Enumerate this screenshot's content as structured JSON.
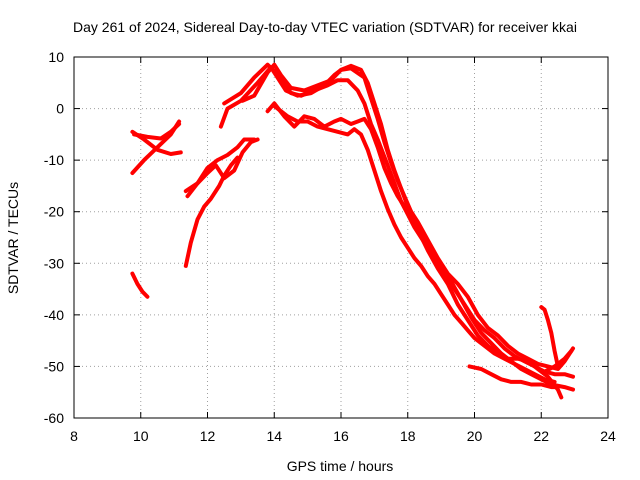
{
  "chart_data": {
    "type": "scatter",
    "title": "Day 261 of 2024, Sidereal Day-to-day VTEC variation (SDTVAR) for receiver kkai",
    "xlabel": "GPS time / hours",
    "ylabel": "SDTVAR / TECUs",
    "xlim": [
      8,
      24
    ],
    "ylim": [
      -60,
      10
    ],
    "x_ticks": [
      "8",
      "10",
      "12",
      "14",
      "16",
      "18",
      "20",
      "22",
      "24"
    ],
    "y_ticks": [
      "10",
      "0",
      "-10",
      "-20",
      "-30",
      "-40",
      "-50",
      "-60"
    ],
    "grid": true,
    "marker": "+",
    "color": "#ff0000",
    "series": [
      {
        "name": "trace-1",
        "points": [
          [
            9.75,
            -32
          ],
          [
            9.9,
            -34
          ],
          [
            10.05,
            -35.5
          ],
          [
            10.2,
            -36.5
          ]
        ]
      },
      {
        "name": "trace-2",
        "points": [
          [
            9.75,
            -12.5
          ],
          [
            10.1,
            -10
          ],
          [
            10.5,
            -7.5
          ],
          [
            10.9,
            -5
          ],
          [
            11.15,
            -2.5
          ]
        ]
      },
      {
        "name": "trace-3",
        "points": [
          [
            9.75,
            -4.5
          ],
          [
            10.1,
            -6
          ],
          [
            10.5,
            -8
          ],
          [
            10.9,
            -8.8
          ],
          [
            11.2,
            -8.5
          ]
        ]
      },
      {
        "name": "trace-4",
        "points": [
          [
            9.8,
            -5
          ],
          [
            10.2,
            -5.5
          ],
          [
            10.6,
            -5.8
          ],
          [
            10.9,
            -4.5
          ],
          [
            11.15,
            -3
          ]
        ]
      },
      {
        "name": "trace-5",
        "points": [
          [
            11.35,
            -30.5
          ],
          [
            11.5,
            -26
          ],
          [
            11.7,
            -21.5
          ],
          [
            11.9,
            -19
          ],
          [
            12.1,
            -17.5
          ],
          [
            12.35,
            -15
          ],
          [
            12.5,
            -13
          ],
          [
            12.7,
            -11
          ],
          [
            12.9,
            -9.5
          ]
        ]
      },
      {
        "name": "trace-6",
        "points": [
          [
            11.4,
            -17
          ],
          [
            11.7,
            -14.5
          ],
          [
            12,
            -12.5
          ],
          [
            12.25,
            -11
          ],
          [
            12.5,
            -13.5
          ],
          [
            12.8,
            -12
          ],
          [
            13.05,
            -8.5
          ],
          [
            13.3,
            -6.5
          ],
          [
            13.5,
            -6
          ]
        ]
      },
      {
        "name": "trace-7",
        "points": [
          [
            11.35,
            -16
          ],
          [
            11.7,
            -14.5
          ],
          [
            12,
            -11.5
          ],
          [
            12.3,
            -10
          ],
          [
            12.6,
            -9
          ],
          [
            12.9,
            -7.5
          ],
          [
            13.1,
            -6
          ],
          [
            13.4,
            -6
          ]
        ]
      },
      {
        "name": "trace-8",
        "points": [
          [
            12.4,
            -3.5
          ],
          [
            12.6,
            0
          ],
          [
            13,
            1.5
          ],
          [
            13.5,
            5
          ],
          [
            13.9,
            8
          ],
          [
            14.1,
            6
          ],
          [
            14.35,
            3.5
          ],
          [
            14.7,
            2.5
          ],
          [
            15.1,
            3
          ],
          [
            15.5,
            4.5
          ],
          [
            15.8,
            6.5
          ],
          [
            16,
            7.5
          ],
          [
            16.3,
            8.3
          ],
          [
            16.6,
            7.5
          ],
          [
            16.8,
            5
          ],
          [
            17,
            1
          ],
          [
            17.2,
            -3
          ],
          [
            17.4,
            -8
          ],
          [
            17.6,
            -12
          ],
          [
            17.8,
            -15.5
          ],
          [
            18,
            -19
          ],
          [
            18.3,
            -22
          ],
          [
            18.6,
            -25.5
          ],
          [
            18.9,
            -29
          ],
          [
            19.2,
            -32
          ],
          [
            19.5,
            -34
          ],
          [
            19.8,
            -36.5
          ],
          [
            20.1,
            -40
          ],
          [
            20.4,
            -42.5
          ],
          [
            20.7,
            -44
          ],
          [
            21,
            -46
          ],
          [
            21.3,
            -47.5
          ],
          [
            21.6,
            -48.5
          ],
          [
            21.9,
            -49.5
          ],
          [
            22.2,
            -50
          ],
          [
            22.5,
            -50.5
          ],
          [
            22.7,
            -49
          ],
          [
            22.95,
            -46.5
          ]
        ]
      },
      {
        "name": "trace-9",
        "points": [
          [
            12.5,
            1
          ],
          [
            13,
            3
          ],
          [
            13.4,
            6
          ],
          [
            13.8,
            8.5
          ],
          [
            14.2,
            6
          ],
          [
            14.5,
            3
          ],
          [
            14.8,
            2.5
          ],
          [
            15.2,
            3.5
          ],
          [
            15.6,
            4.5
          ],
          [
            15.9,
            5.5
          ],
          [
            16.2,
            5.5
          ],
          [
            16.5,
            3.5
          ],
          [
            16.7,
            1
          ],
          [
            16.9,
            -3
          ],
          [
            17.1,
            -6
          ],
          [
            17.4,
            -11
          ],
          [
            17.6,
            -14.5
          ],
          [
            17.8,
            -18
          ],
          [
            18,
            -20.5
          ],
          [
            18.2,
            -23
          ],
          [
            18.5,
            -26
          ],
          [
            18.8,
            -29.5
          ],
          [
            19.1,
            -32
          ],
          [
            19.4,
            -35
          ],
          [
            19.7,
            -38
          ],
          [
            20,
            -41
          ],
          [
            20.3,
            -43
          ],
          [
            20.6,
            -44.5
          ],
          [
            20.9,
            -46.5
          ],
          [
            21.2,
            -48
          ],
          [
            21.5,
            -49
          ],
          [
            21.8,
            -50
          ],
          [
            22.1,
            -51
          ],
          [
            22.4,
            -51.5
          ],
          [
            22.7,
            -51.5
          ],
          [
            22.95,
            -52
          ]
        ]
      },
      {
        "name": "trace-10",
        "points": [
          [
            13.05,
            1.5
          ],
          [
            13.4,
            2.5
          ],
          [
            13.8,
            7
          ],
          [
            14,
            8.5
          ],
          [
            14.2,
            6.5
          ],
          [
            14.5,
            4
          ],
          [
            14.9,
            3.5
          ],
          [
            15.3,
            4.5
          ],
          [
            15.7,
            5.5
          ],
          [
            16,
            7.5
          ],
          [
            16.3,
            7.8
          ],
          [
            16.7,
            6
          ],
          [
            16.9,
            2
          ],
          [
            17.1,
            -2
          ],
          [
            17.3,
            -6.5
          ],
          [
            17.5,
            -10.5
          ],
          [
            17.7,
            -14
          ],
          [
            17.9,
            -17
          ],
          [
            18.1,
            -20
          ],
          [
            18.4,
            -23.5
          ],
          [
            18.7,
            -27
          ],
          [
            19,
            -30.5
          ],
          [
            19.3,
            -33.5
          ],
          [
            19.6,
            -37
          ],
          [
            19.9,
            -40.5
          ],
          [
            20.2,
            -43.5
          ],
          [
            20.5,
            -45.5
          ],
          [
            20.8,
            -47.5
          ],
          [
            21.1,
            -49
          ],
          [
            21.4,
            -50.5
          ],
          [
            21.7,
            -51.5
          ],
          [
            22,
            -52.5
          ],
          [
            22.3,
            -53.5
          ],
          [
            22.7,
            -54
          ],
          [
            22.95,
            -54.5
          ]
        ]
      },
      {
        "name": "trace-11",
        "points": [
          [
            13.8,
            -0.5
          ],
          [
            14,
            1
          ],
          [
            14.3,
            -1.5
          ],
          [
            14.6,
            -3.5
          ],
          [
            14.9,
            -1.5
          ],
          [
            15.2,
            -2
          ],
          [
            15.5,
            -3.5
          ],
          [
            15.8,
            -2.5
          ],
          [
            16,
            -2
          ],
          [
            16.3,
            -3
          ],
          [
            16.5,
            -2.5
          ],
          [
            16.7,
            -2
          ],
          [
            16.9,
            -4
          ],
          [
            17.1,
            -7.5
          ],
          [
            17.3,
            -11.5
          ],
          [
            17.5,
            -14.5
          ],
          [
            17.7,
            -17
          ],
          [
            17.9,
            -19
          ],
          [
            18.1,
            -21
          ],
          [
            18.3,
            -23.5
          ],
          [
            18.6,
            -27.5
          ],
          [
            18.9,
            -31
          ],
          [
            19.2,
            -34
          ],
          [
            19.5,
            -38
          ],
          [
            19.8,
            -41
          ],
          [
            20.1,
            -44
          ],
          [
            20.4,
            -46
          ],
          [
            20.7,
            -47.5
          ],
          [
            21,
            -48.5
          ],
          [
            21.3,
            -48.5
          ],
          [
            21.6,
            -49
          ],
          [
            21.9,
            -50.5
          ],
          [
            22.2,
            -52
          ],
          [
            22.5,
            -54.5
          ],
          [
            22.6,
            -56
          ]
        ]
      },
      {
        "name": "trace-12",
        "points": [
          [
            14,
            0.5
          ],
          [
            14.4,
            -1.5
          ],
          [
            14.7,
            -2.5
          ],
          [
            15,
            -2.5
          ],
          [
            15.3,
            -3.5
          ],
          [
            15.6,
            -4
          ],
          [
            15.9,
            -4.5
          ],
          [
            16.2,
            -5
          ],
          [
            16.4,
            -4
          ],
          [
            16.6,
            -5
          ],
          [
            16.8,
            -8
          ],
          [
            17,
            -12
          ],
          [
            17.2,
            -16
          ],
          [
            17.4,
            -19.5
          ],
          [
            17.6,
            -22.5
          ],
          [
            17.8,
            -25
          ],
          [
            18,
            -27
          ],
          [
            18.2,
            -29
          ],
          [
            18.4,
            -30.5
          ],
          [
            18.6,
            -32.5
          ],
          [
            18.8,
            -34
          ],
          [
            19,
            -36
          ],
          [
            19.2,
            -38
          ],
          [
            19.4,
            -40
          ],
          [
            19.6,
            -41.5
          ],
          [
            19.8,
            -43
          ],
          [
            20,
            -44.5
          ],
          [
            20.3,
            -46
          ],
          [
            20.6,
            -47.5
          ],
          [
            20.9,
            -48.5
          ],
          [
            21.2,
            -49.5
          ],
          [
            21.5,
            -50.5
          ],
          [
            21.8,
            -51.5
          ],
          [
            22.1,
            -52.5
          ],
          [
            22.4,
            -53
          ]
        ]
      },
      {
        "name": "trace-13",
        "points": [
          [
            19.85,
            -50
          ],
          [
            20.2,
            -50.5
          ],
          [
            20.5,
            -51.5
          ],
          [
            20.8,
            -52.5
          ],
          [
            21.1,
            -53
          ],
          [
            21.4,
            -53
          ],
          [
            21.7,
            -53.5
          ],
          [
            22,
            -53.5
          ],
          [
            22.3,
            -54
          ],
          [
            22.5,
            -54
          ]
        ]
      },
      {
        "name": "trace-14",
        "points": [
          [
            22,
            -38.5
          ],
          [
            22.1,
            -39
          ],
          [
            22.2,
            -41
          ],
          [
            22.3,
            -43.5
          ],
          [
            22.4,
            -47
          ],
          [
            22.5,
            -50
          ]
        ]
      },
      {
        "name": "trace-15",
        "points": [
          [
            22.1,
            -51
          ],
          [
            22.4,
            -50
          ],
          [
            22.7,
            -48.5
          ],
          [
            22.9,
            -47
          ]
        ]
      }
    ]
  }
}
